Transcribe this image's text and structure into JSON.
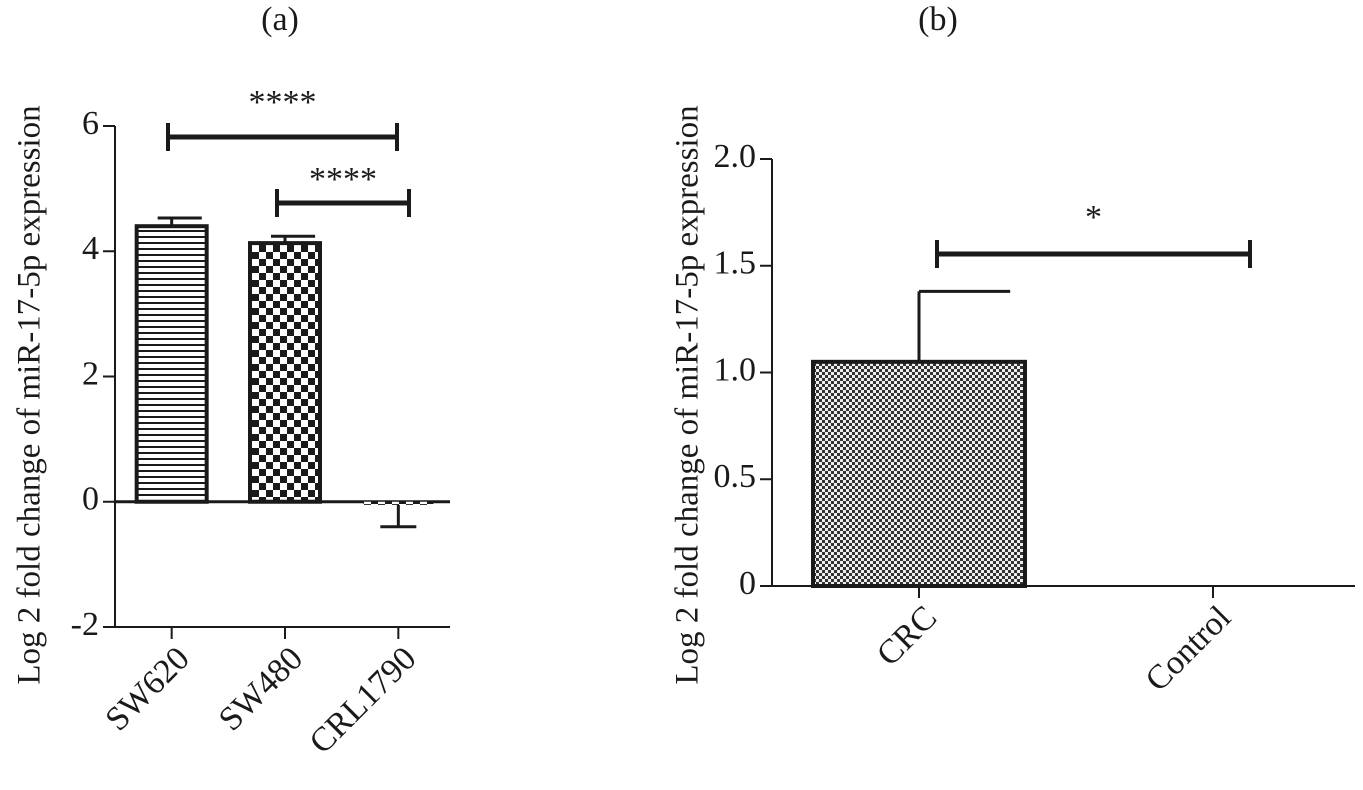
{
  "chart_data": [
    {
      "type": "bar",
      "title": "(a)",
      "ylabel": "Log 2 fold change of miR-17-5p expression",
      "categories": [
        "SW620",
        "SW480",
        "CRL1790"
      ],
      "values": [
        4.4,
        4.13,
        -0.05
      ],
      "errors": [
        0.13,
        0.11,
        0.35
      ],
      "color": "#1a1a1a",
      "ylim": [
        -2,
        6
      ],
      "yticks": [
        -2,
        0,
        2,
        4,
        6
      ],
      "annotations": [
        "****",
        "****"
      ]
    },
    {
      "type": "bar",
      "title": "(b)",
      "ylabel": "Log 2 fold change of miR-17-5p expression",
      "categories": [
        "CRC",
        "Control"
      ],
      "values": [
        1.05,
        0
      ],
      "errors": [
        0.33,
        0
      ],
      "color": "#1a1a1a",
      "ylim": [
        0,
        2.0
      ],
      "yticks": [
        0,
        0.5,
        {
          "value": 1.0,
          "label": "1.0"
        },
        1.5,
        {
          "value": 2.0,
          "label": "2.0"
        }
      ],
      "annotations": [
        "*"
      ]
    }
  ]
}
